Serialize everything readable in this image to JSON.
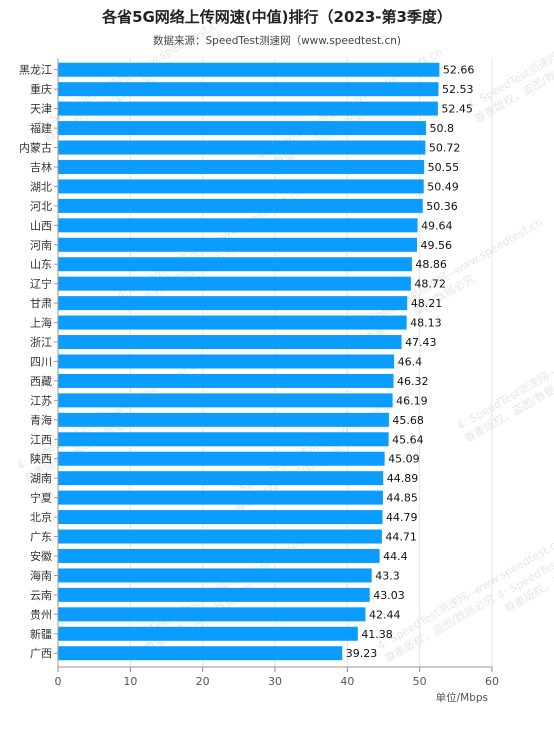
{
  "chart_data": {
    "type": "bar",
    "orientation": "horizontal",
    "title": "各省5G网络上传网速(中值)排行（2023-第3季度）",
    "subtitle": "数据来源：SpeedTest测速网（www.speedtest.cn)",
    "xlabel": "单位/Mbps",
    "ylabel": "",
    "xlim": [
      0,
      60
    ],
    "xticks": [
      0,
      10,
      20,
      30,
      40,
      50,
      60
    ],
    "grid": true,
    "bar_color": "#0a9cff",
    "categories": [
      "黑龙江",
      "重庆",
      "天津",
      "福建",
      "内蒙古",
      "吉林",
      "湖北",
      "河北",
      "山西",
      "河南",
      "山东",
      "辽宁",
      "甘肃",
      "上海",
      "浙江",
      "四川",
      "西藏",
      "江苏",
      "青海",
      "江西",
      "陕西",
      "湖南",
      "宁夏",
      "北京",
      "广东",
      "安徽",
      "海南",
      "云南",
      "贵州",
      "新疆",
      "广西"
    ],
    "values": [
      52.66,
      52.53,
      52.45,
      50.8,
      50.72,
      50.55,
      50.49,
      50.36,
      49.64,
      49.56,
      48.86,
      48.72,
      48.21,
      48.13,
      47.43,
      46.4,
      46.32,
      46.19,
      45.68,
      45.64,
      45.09,
      44.89,
      44.85,
      44.79,
      44.71,
      44.4,
      43.3,
      43.03,
      42.44,
      41.38,
      39.23
    ],
    "value_labels": [
      "52.66",
      "52.53",
      "52.45",
      "50.8",
      "50.72",
      "50.55",
      "50.49",
      "50.36",
      "49.64",
      "49.56",
      "48.86",
      "48.72",
      "48.21",
      "48.13",
      "47.43",
      "46.4",
      "46.32",
      "46.19",
      "45.68",
      "45.64",
      "45.09",
      "44.89",
      "44.85",
      "44.79",
      "44.71",
      "44.4",
      "43.3",
      "43.03",
      "42.44",
      "41.38",
      "39.23"
    ]
  },
  "watermark": {
    "lines": [
      "4: SpeedTest测速网--www.speedtest.cn",
      "尊重版权，盗图/数据必究"
    ]
  }
}
